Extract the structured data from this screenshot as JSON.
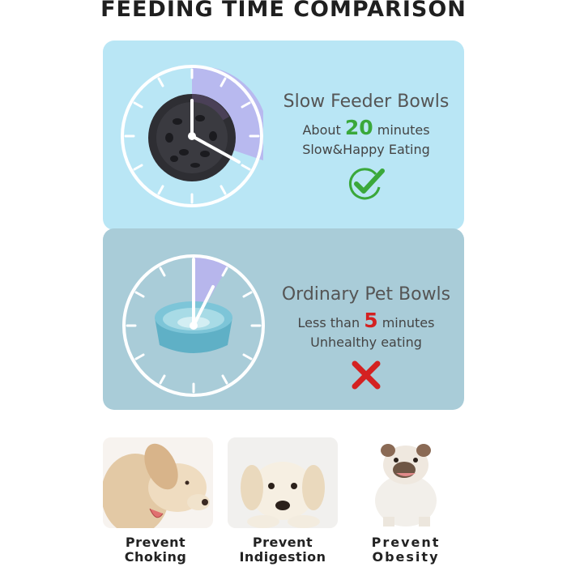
{
  "title": "FEEDING TIME COMPARISON",
  "slow": {
    "heading": "Slow Feeder Bowls",
    "about": "About",
    "minutes_value": "20",
    "minutes_unit": "minutes",
    "subtitle": "Slow&Happy Eating",
    "badge_icon": "check-circle-icon",
    "accent": "#3aa83a",
    "clock_fraction": 0.333
  },
  "ordinary": {
    "heading": "Ordinary Pet Bowls",
    "less_than": "Less than",
    "minutes_value": "5",
    "minutes_unit": "minutes",
    "subtitle": "Unhealthy eating",
    "badge_icon": "red-x-icon",
    "accent": "#d42121",
    "clock_fraction": 0.083
  },
  "benefits": [
    {
      "line1": "Prevent",
      "line2": "Choking",
      "icon": "dog-eating-photo"
    },
    {
      "line1": "Prevent",
      "line2": "Indigestion",
      "icon": "puppy-lying-photo"
    },
    {
      "line1": "Prevent",
      "line2": "Obesity",
      "icon": "bulldog-photo"
    }
  ]
}
